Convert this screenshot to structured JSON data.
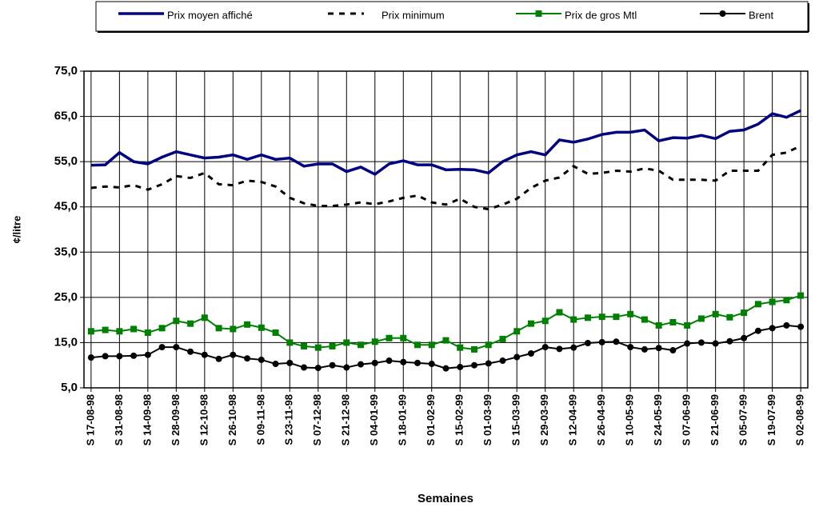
{
  "chart_data": {
    "type": "line",
    "x_label": "Semaines",
    "y_label": "¢/litre",
    "categories": [
      "S 17-08-98",
      null,
      "S 31-08-98",
      null,
      "S 14-09-98",
      null,
      "S 28-09-98",
      null,
      "S 12-10-98",
      null,
      "S 26-10-98",
      null,
      "S 09-11-98",
      null,
      "S 23-11-98",
      null,
      "S 07-12-98",
      null,
      "S 21-12-98",
      null,
      "S 04-01-99",
      null,
      "S 18-01-99",
      null,
      "S 01-02-99",
      null,
      "S 15-02-99",
      null,
      "S 01-03-99",
      null,
      "S 15-03-99",
      null,
      "S 29-03-99",
      null,
      "S 12-04-99",
      null,
      "S 26-04-99",
      null,
      "S 10-05-99",
      null,
      "S 24-05-99",
      null,
      "S 07-06-99",
      null,
      "S 21-06-99",
      null,
      "S 05-07-99",
      null,
      "S 19-07-99",
      null,
      "S 02-08-99"
    ],
    "series": [
      {
        "name": "Prix moyen affiché",
        "color": "#000080",
        "line": "solid",
        "marker": null,
        "values": [
          54.2,
          54.3,
          57,
          55,
          54.5,
          56,
          57.2,
          56.5,
          55.8,
          56,
          56.5,
          55.5,
          56.5,
          55.5,
          55.8,
          54,
          54.5,
          54.5,
          52.8,
          53.8,
          52.2,
          54.5,
          55.2,
          54.3,
          54.3,
          53.2,
          53.3,
          53.2,
          52.5,
          55,
          56.5,
          57.2,
          56.5,
          59.8,
          59.3,
          60,
          61,
          61.5,
          61.5,
          62,
          59.6,
          60.3,
          60.2,
          60.8,
          60.1,
          61.7,
          62,
          63.3,
          65.6,
          64.8,
          66.3
        ]
      },
      {
        "name": "Prix minimum",
        "color": "#000000",
        "line": "dashed",
        "marker": null,
        "values": [
          49.2,
          49.5,
          49.3,
          49.8,
          48.8,
          50,
          51.8,
          51.4,
          52.5,
          50,
          49.8,
          50.8,
          50.5,
          49.5,
          47,
          45.8,
          45.2,
          45.2,
          45.5,
          46,
          45.6,
          46.2,
          47,
          47.5,
          46,
          45.5,
          46.8,
          45,
          44.5,
          45.5,
          46.8,
          49.2,
          50.8,
          51.5,
          54,
          52.3,
          52.5,
          53,
          52.8,
          53.5,
          53,
          51,
          51,
          51,
          50.8,
          53,
          53,
          53,
          56.5,
          57,
          58.5
        ]
      },
      {
        "name": "Prix de gros Mtl",
        "color": "#008000",
        "line": "solid",
        "marker": "square",
        "values": [
          17.5,
          17.8,
          17.5,
          18,
          17.2,
          18.2,
          19.8,
          19.2,
          20.5,
          18.2,
          18,
          19,
          18.3,
          17.2,
          15,
          14.2,
          13.9,
          14.2,
          15,
          14.5,
          15.2,
          16,
          16,
          14.5,
          14.5,
          15.5,
          13.9,
          13.5,
          14.5,
          15.8,
          17.5,
          19.2,
          19.8,
          21.7,
          20.1,
          20.5,
          20.7,
          20.7,
          21.3,
          20.1,
          18.8,
          19.5,
          18.8,
          20.3,
          21.3,
          20.6,
          21.6,
          23.5,
          24,
          24.4,
          25.4
        ]
      },
      {
        "name": "Brent",
        "color": "#000000",
        "line": "solid",
        "marker": "circle",
        "values": [
          11.7,
          12,
          12,
          12.1,
          12.3,
          14,
          14,
          13,
          12.3,
          11.4,
          12.3,
          11.5,
          11.2,
          10.3,
          10.5,
          9.5,
          9.4,
          10,
          9.5,
          10.2,
          10.5,
          11,
          10.7,
          10.5,
          10.3,
          9.3,
          9.6,
          10,
          10.4,
          11,
          11.8,
          12.6,
          14,
          13.6,
          13.9,
          14.9,
          15.1,
          15.2,
          14,
          13.5,
          13.8,
          13.3,
          14.8,
          15,
          14.8,
          15.3,
          16,
          17.6,
          18.2,
          18.8,
          18.5
        ]
      }
    ],
    "ylim": [
      5,
      75
    ],
    "yticks": [
      {
        "value": 5,
        "label": "5,0"
      },
      {
        "value": 15,
        "label": "15,0"
      },
      {
        "value": 25,
        "label": "25,0"
      },
      {
        "value": 35,
        "label": "35,0"
      },
      {
        "value": 45,
        "label": "45,0"
      },
      {
        "value": 55,
        "label": "55,0"
      },
      {
        "value": 65,
        "label": "65,0"
      },
      {
        "value": 75,
        "label": "75,0"
      }
    ],
    "grid": true,
    "legend": "top"
  }
}
